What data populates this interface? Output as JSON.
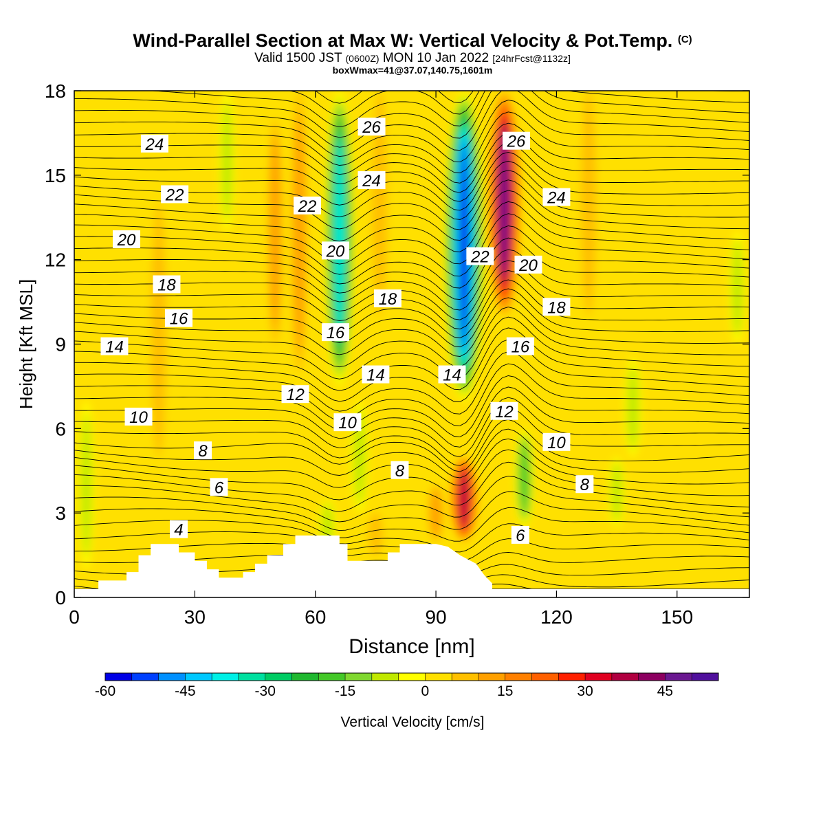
{
  "header": {
    "title": "Wind-Parallel Section at Max W: Vertical Velocity & Pot.Temp.",
    "title_tag": "(C)",
    "valid_prefix": "Valid 1500 JST",
    "valid_utc": "(0600Z)",
    "valid_date": "MON 10 Jan 2022",
    "forecast": "[24hrFcst@1132z]",
    "box_info": "boxWmax=41@37.07,140.75,1601m"
  },
  "chart_data": {
    "type": "heatmap",
    "xlabel": "Distance [nm]",
    "ylabel": "Height [Kft MSL]",
    "xlim": [
      0,
      168
    ],
    "ylim": [
      0,
      18
    ],
    "x_ticks": [
      "0",
      "30",
      "60",
      "90",
      "120",
      "150"
    ],
    "x_tick_values": [
      0,
      30,
      60,
      90,
      120,
      150
    ],
    "y_ticks": [
      "0",
      "3",
      "6",
      "9",
      "12",
      "15",
      "18"
    ],
    "y_tick_values": [
      0,
      3,
      6,
      9,
      12,
      15,
      18
    ],
    "colorbar": {
      "label": "Vertical Velocity [cm/s]",
      "min": -60,
      "max": 55,
      "step": 5,
      "tick_labels": [
        "-60",
        "-45",
        "-30",
        "-15",
        "0",
        "15",
        "30",
        "45"
      ],
      "tick_values": [
        -60,
        -45,
        -30,
        -15,
        0,
        15,
        30,
        45
      ],
      "colors": [
        "#0000e6",
        "#0040ff",
        "#0090ff",
        "#00c8ff",
        "#00f0e6",
        "#00e0a0",
        "#00cc64",
        "#20b830",
        "#44c828",
        "#80d830",
        "#c0e800",
        "#ffff00",
        "#ffe000",
        "#ffc000",
        "#ffa000",
        "#ff8000",
        "#ff6000",
        "#ff2000",
        "#e00020",
        "#b00040",
        "#8c0060",
        "#6a1890",
        "#50109c"
      ]
    },
    "vertical_velocity_features": [
      {
        "x": 66,
        "y_min": 7.5,
        "y_max": 18,
        "value": -40
      },
      {
        "x": 97,
        "y_min": 7,
        "y_max": 18,
        "value": -60
      },
      {
        "x": 107,
        "y_min": 10,
        "y_max": 18,
        "value": 45
      },
      {
        "x": 97,
        "y_min": 2,
        "y_max": 5,
        "value": 35
      },
      {
        "x": 56,
        "y_min": 8,
        "y_max": 18,
        "value": 10
      },
      {
        "x": 21,
        "y_min": 5,
        "y_max": 14,
        "value": 7
      },
      {
        "x": 38,
        "y_min": 13,
        "y_max": 18,
        "value": -10
      },
      {
        "x": 50,
        "y_min": 9,
        "y_max": 17,
        "value": 8
      },
      {
        "x": 76,
        "y_min": 10,
        "y_max": 18,
        "value": 7
      },
      {
        "x": 128,
        "y_min": 10,
        "y_max": 18,
        "value": 7
      },
      {
        "x": 112,
        "y_min": 2.5,
        "y_max": 6,
        "value": -18
      },
      {
        "x": 71,
        "y_min": 3,
        "y_max": 7,
        "value": -12
      },
      {
        "x": 63,
        "y_min": 1.5,
        "y_max": 3.5,
        "value": -12
      },
      {
        "x": 139,
        "y_min": 5,
        "y_max": 8.5,
        "value": -12
      },
      {
        "x": 135,
        "y_min": 2.5,
        "y_max": 5,
        "value": -9
      },
      {
        "x": 165,
        "y_min": 9,
        "y_max": 13,
        "value": -10
      },
      {
        "x": 3,
        "y_min": 1,
        "y_max": 7,
        "value": -9
      },
      {
        "x": 90,
        "y_min": 2,
        "y_max": 4,
        "value": 8
      },
      {
        "x": 75,
        "y_min": 1.5,
        "y_max": 3,
        "value": 6
      }
    ],
    "terrain": [
      [
        0,
        0.3
      ],
      [
        6,
        0.3
      ],
      [
        6,
        0.6
      ],
      [
        13,
        0.6
      ],
      [
        13,
        0.9
      ],
      [
        16,
        0.9
      ],
      [
        16,
        1.5
      ],
      [
        19,
        1.5
      ],
      [
        19,
        1.9
      ],
      [
        26,
        1.9
      ],
      [
        26,
        1.6
      ],
      [
        30,
        1.6
      ],
      [
        30,
        1.3
      ],
      [
        33,
        1.3
      ],
      [
        33,
        1.0
      ],
      [
        36,
        1.0
      ],
      [
        36,
        0.7
      ],
      [
        42,
        0.7
      ],
      [
        42,
        0.9
      ],
      [
        45,
        0.9
      ],
      [
        45,
        1.2
      ],
      [
        48,
        1.2
      ],
      [
        48,
        1.5
      ],
      [
        52,
        1.5
      ],
      [
        52,
        1.9
      ],
      [
        55,
        1.9
      ],
      [
        55,
        2.2
      ],
      [
        66,
        2.2
      ],
      [
        66,
        1.9
      ],
      [
        68,
        1.9
      ],
      [
        68,
        1.3
      ],
      [
        78,
        1.3
      ],
      [
        78,
        1.6
      ],
      [
        81,
        1.6
      ],
      [
        81,
        1.9
      ],
      [
        90,
        1.9
      ],
      [
        93,
        1.8
      ],
      [
        96,
        1.5
      ],
      [
        100,
        1.2
      ],
      [
        102,
        0.8
      ],
      [
        104,
        0.5
      ],
      [
        104,
        0.3
      ],
      [
        168,
        0.3
      ]
    ],
    "theta_contours": [
      {
        "label": "4",
        "label_x": 26,
        "label_y": 2.4
      },
      {
        "label": "6",
        "label_x": 36,
        "label_y": 3.9
      },
      {
        "label": "8",
        "label_x": 32,
        "label_y": 5.2
      },
      {
        "label": "10",
        "label_x": 16,
        "label_y": 6.4
      },
      {
        "label": "12",
        "label_x": 55,
        "label_y": 7.2
      },
      {
        "label": "14",
        "label_x": 10,
        "label_y": 8.9
      },
      {
        "label": "16",
        "label_x": 26,
        "label_y": 9.9
      },
      {
        "label": "18",
        "label_x": 23,
        "label_y": 11.1
      },
      {
        "label": "20",
        "label_x": 13,
        "label_y": 12.7
      },
      {
        "label": "22",
        "label_x": 25,
        "label_y": 14.3
      },
      {
        "label": "24",
        "label_x": 20,
        "label_y": 16.1
      },
      {
        "label": "26",
        "label_x": 74,
        "label_y": 16.7
      },
      {
        "label": "24",
        "label_x": 74,
        "label_y": 14.8
      },
      {
        "label": "22",
        "label_x": 58,
        "label_y": 13.9
      },
      {
        "label": "20",
        "label_x": 65,
        "label_y": 12.3
      },
      {
        "label": "18",
        "label_x": 78,
        "label_y": 10.6
      },
      {
        "label": "16",
        "label_x": 65,
        "label_y": 9.4
      },
      {
        "label": "14",
        "label_x": 75,
        "label_y": 7.9
      },
      {
        "label": "10",
        "label_x": 68,
        "label_y": 6.2
      },
      {
        "label": "8",
        "label_x": 81,
        "label_y": 4.5
      },
      {
        "label": "26",
        "label_x": 110,
        "label_y": 16.2
      },
      {
        "label": "24",
        "label_x": 120,
        "label_y": 14.2
      },
      {
        "label": "22",
        "label_x": 101,
        "label_y": 12.1
      },
      {
        "label": "20",
        "label_x": 113,
        "label_y": 11.8
      },
      {
        "label": "18",
        "label_x": 120,
        "label_y": 10.3
      },
      {
        "label": "16",
        "label_x": 111,
        "label_y": 8.9
      },
      {
        "label": "14",
        "label_x": 94,
        "label_y": 7.9
      },
      {
        "label": "12",
        "label_x": 107,
        "label_y": 6.6
      },
      {
        "label": "10",
        "label_x": 120,
        "label_y": 5.5
      },
      {
        "label": "8",
        "label_x": 127,
        "label_y": 4.0
      },
      {
        "label": "6",
        "label_x": 111,
        "label_y": 2.2
      }
    ]
  }
}
